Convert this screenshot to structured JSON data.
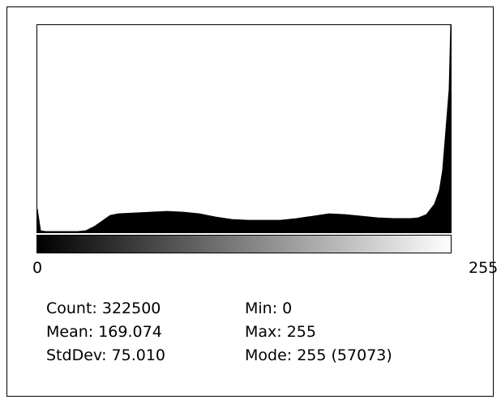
{
  "chart_data": {
    "type": "area",
    "color": "#000000",
    "x": [
      0,
      2,
      5,
      15,
      25,
      30,
      35,
      40,
      45,
      50,
      60,
      70,
      80,
      90,
      100,
      110,
      120,
      130,
      140,
      150,
      160,
      170,
      180,
      190,
      200,
      210,
      220,
      230,
      235,
      240,
      245,
      248,
      250,
      252,
      254,
      255
    ],
    "values": [
      6440,
      450,
      220,
      220,
      220,
      450,
      1550,
      3110,
      4660,
      5110,
      5330,
      5550,
      5770,
      5550,
      5110,
      4220,
      3550,
      3330,
      3330,
      3330,
      3780,
      4440,
      5110,
      4880,
      4440,
      4000,
      3780,
      3780,
      4000,
      4880,
      7770,
      11550,
      17100,
      28200,
      39300,
      57073
    ],
    "xlim": [
      0,
      255
    ],
    "xticks": [
      0,
      255
    ],
    "ylim": [
      0,
      57073
    ],
    "stats": {
      "left": [
        "Count: 322500",
        "Mean: 169.074",
        "StdDev: 75.010"
      ],
      "right": [
        "Min: 0",
        "Max: 255",
        "Mode: 255 (57073)"
      ]
    }
  }
}
